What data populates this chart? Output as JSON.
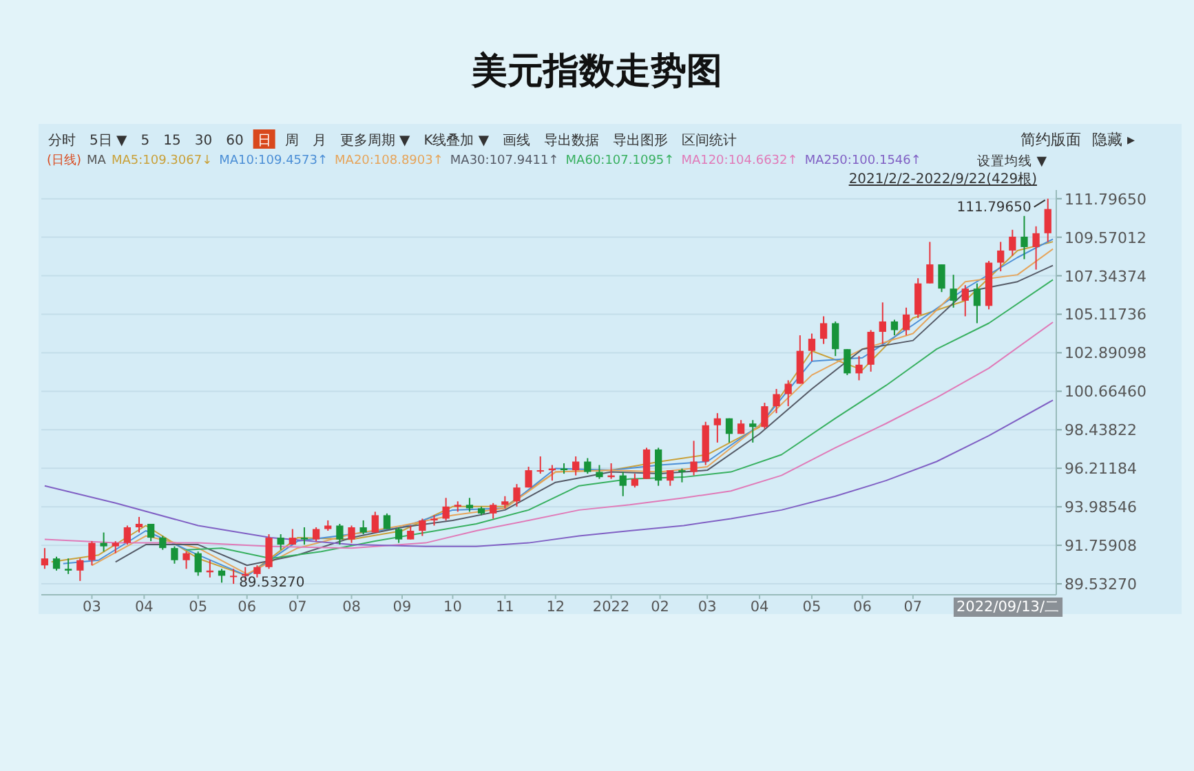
{
  "chart_data": {
    "type": "candlestick",
    "title": "美元指数走势图",
    "x": [
      "2021-02-01",
      "2021-02-08",
      "2021-02-15",
      "2021-02-22",
      "2021-03-01",
      "2021-03-08",
      "2021-03-15",
      "2021-03-22",
      "2021-03-29",
      "2021-04-05",
      "2021-04-12",
      "2021-04-19",
      "2021-04-26",
      "2021-05-03",
      "2021-05-10",
      "2021-05-17",
      "2021-05-24",
      "2021-05-31",
      "2021-06-07",
      "2021-06-14",
      "2021-06-21",
      "2021-06-28",
      "2021-07-05",
      "2021-07-12",
      "2021-07-19",
      "2021-07-26",
      "2021-08-02",
      "2021-08-09",
      "2021-08-16",
      "2021-08-23",
      "2021-08-30",
      "2021-09-06",
      "2021-09-13",
      "2021-09-20",
      "2021-09-27",
      "2021-10-04",
      "2021-10-11",
      "2021-10-18",
      "2021-10-25",
      "2021-11-01",
      "2021-11-08",
      "2021-11-15",
      "2021-11-22",
      "2021-11-29",
      "2021-12-06",
      "2021-12-13",
      "2021-12-20",
      "2021-12-27",
      "2022-01-03",
      "2022-01-10",
      "2022-01-17",
      "2022-01-24",
      "2022-01-31",
      "2022-02-07",
      "2022-02-14",
      "2022-02-21",
      "2022-02-28",
      "2022-03-07",
      "2022-03-14",
      "2022-03-21",
      "2022-03-28",
      "2022-04-04",
      "2022-04-11",
      "2022-04-18",
      "2022-04-25",
      "2022-05-02",
      "2022-05-09",
      "2022-05-16",
      "2022-05-23",
      "2022-05-30",
      "2022-06-06",
      "2022-06-13",
      "2022-06-20",
      "2022-06-27",
      "2022-07-04",
      "2022-07-11",
      "2022-07-18",
      "2022-07-25",
      "2022-08-01",
      "2022-08-08",
      "2022-08-15",
      "2022-08-22",
      "2022-08-29",
      "2022-09-05",
      "2022-09-12",
      "2022-09-19"
    ],
    "ohlc": [
      [
        90.6,
        91.6,
        90.4,
        91.0
      ],
      [
        91.0,
        91.1,
        90.3,
        90.4
      ],
      [
        90.4,
        91.0,
        90.1,
        90.3
      ],
      [
        90.3,
        91.0,
        89.7,
        90.9
      ],
      [
        90.9,
        92.0,
        90.6,
        91.9
      ],
      [
        91.9,
        92.5,
        91.4,
        91.7
      ],
      [
        91.7,
        92.0,
        91.3,
        91.9
      ],
      [
        91.9,
        92.9,
        91.8,
        92.8
      ],
      [
        92.8,
        93.4,
        92.5,
        93.0
      ],
      [
        93.0,
        93.0,
        92.0,
        92.2
      ],
      [
        92.2,
        92.3,
        91.5,
        91.6
      ],
      [
        91.6,
        91.7,
        90.7,
        90.9
      ],
      [
        90.9,
        91.4,
        90.4,
        91.3
      ],
      [
        91.3,
        91.4,
        90.0,
        90.2
      ],
      [
        90.2,
        90.9,
        89.9,
        90.3
      ],
      [
        90.3,
        90.4,
        89.6,
        90.0
      ],
      [
        90.0,
        90.4,
        89.5327,
        90.0
      ],
      [
        90.0,
        90.5,
        89.7,
        90.1
      ],
      [
        90.1,
        90.6,
        89.9,
        90.5
      ],
      [
        90.5,
        92.4,
        90.4,
        92.2
      ],
      [
        92.2,
        92.4,
        91.5,
        91.8
      ],
      [
        91.8,
        92.7,
        91.8,
        92.2
      ],
      [
        92.2,
        92.8,
        91.8,
        92.1
      ],
      [
        92.1,
        92.8,
        92.0,
        92.7
      ],
      [
        92.7,
        93.2,
        92.6,
        92.9
      ],
      [
        92.9,
        93.0,
        91.8,
        92.1
      ],
      [
        92.1,
        92.9,
        91.9,
        92.8
      ],
      [
        92.8,
        93.2,
        92.4,
        92.5
      ],
      [
        92.5,
        93.7,
        92.5,
        93.5
      ],
      [
        93.5,
        93.6,
        92.7,
        92.7
      ],
      [
        92.7,
        92.8,
        91.9,
        92.1
      ],
      [
        92.1,
        92.9,
        92.1,
        92.6
      ],
      [
        92.6,
        93.3,
        92.3,
        93.2
      ],
      [
        93.2,
        93.5,
        92.9,
        93.3
      ],
      [
        93.3,
        94.5,
        93.2,
        94.0
      ],
      [
        94.0,
        94.3,
        93.7,
        94.1
      ],
      [
        94.1,
        94.5,
        93.7,
        93.9
      ],
      [
        93.9,
        94.0,
        93.5,
        93.6
      ],
      [
        93.6,
        94.2,
        93.3,
        94.1
      ],
      [
        94.1,
        94.6,
        93.9,
        94.3
      ],
      [
        94.3,
        95.3,
        94.0,
        95.1
      ],
      [
        95.1,
        96.3,
        95.1,
        96.1
      ],
      [
        96.1,
        96.9,
        95.9,
        96.1
      ],
      [
        96.1,
        96.4,
        95.5,
        96.2
      ],
      [
        96.2,
        96.5,
        95.9,
        96.1
      ],
      [
        96.1,
        96.9,
        95.8,
        96.6
      ],
      [
        96.6,
        96.8,
        95.9,
        96.0
      ],
      [
        96.0,
        96.4,
        95.6,
        95.7
      ],
      [
        95.7,
        96.5,
        95.6,
        95.8
      ],
      [
        95.8,
        96.0,
        94.6,
        95.2
      ],
      [
        95.2,
        95.9,
        95.1,
        95.6
      ],
      [
        95.6,
        97.4,
        95.6,
        97.3
      ],
      [
        97.3,
        97.4,
        95.2,
        95.5
      ],
      [
        95.5,
        96.1,
        95.2,
        96.1
      ],
      [
        96.1,
        96.2,
        95.4,
        96.0
      ],
      [
        96.0,
        97.8,
        95.8,
        96.6
      ],
      [
        96.6,
        98.9,
        96.4,
        98.7
      ],
      [
        98.7,
        99.4,
        97.7,
        99.1
      ],
      [
        99.1,
        99.1,
        97.7,
        98.2
      ],
      [
        98.2,
        99.0,
        98.2,
        98.8
      ],
      [
        98.8,
        99.0,
        97.7,
        98.6
      ],
      [
        98.6,
        100.0,
        98.5,
        99.8
      ],
      [
        99.8,
        100.8,
        99.4,
        100.5
      ],
      [
        100.5,
        101.3,
        99.8,
        101.1
      ],
      [
        101.1,
        103.9,
        101.1,
        103.0
      ],
      [
        103.0,
        104.0,
        102.4,
        103.7
      ],
      [
        103.7,
        105.0,
        103.4,
        104.6
      ],
      [
        104.6,
        104.7,
        102.7,
        103.1
      ],
      [
        103.1,
        103.1,
        101.6,
        101.7
      ],
      [
        101.7,
        102.7,
        101.3,
        102.2
      ],
      [
        102.2,
        104.2,
        101.8,
        104.1
      ],
      [
        104.1,
        105.8,
        103.4,
        104.7
      ],
      [
        104.7,
        104.8,
        103.9,
        104.2
      ],
      [
        104.2,
        105.5,
        103.9,
        105.1
      ],
      [
        105.1,
        107.2,
        104.9,
        106.9
      ],
      [
        106.9,
        109.3,
        106.9,
        108.0
      ],
      [
        108.0,
        108.0,
        106.4,
        106.6
      ],
      [
        106.6,
        107.4,
        105.5,
        105.9
      ],
      [
        105.9,
        106.8,
        105.0,
        106.6
      ],
      [
        106.6,
        106.9,
        104.6,
        105.6
      ],
      [
        105.6,
        108.2,
        105.4,
        108.1
      ],
      [
        108.1,
        109.3,
        107.6,
        108.8
      ],
      [
        108.8,
        110.0,
        108.5,
        109.6
      ],
      [
        109.6,
        110.8,
        108.3,
        109.0
      ],
      [
        109.0,
        110.2,
        107.7,
        109.8
      ],
      [
        109.8,
        111.7965,
        109.3,
        111.2
      ]
    ],
    "series": [
      {
        "name": "MA5:109.3067↓",
        "color": "#c9a13a",
        "type": "line",
        "x": [
          "2021-02-05",
          "2021-03-05",
          "2021-04-02",
          "2021-05-03",
          "2021-06-01",
          "2021-07-01",
          "2021-08-02",
          "2021-09-01",
          "2021-10-01",
          "2021-11-01",
          "2021-12-01",
          "2022-01-03",
          "2022-02-01",
          "2022-03-01",
          "2022-04-01",
          "2022-05-02",
          "2022-06-01",
          "2022-07-01",
          "2022-08-01",
          "2022-09-01",
          "2022-09-22"
        ],
        "values": [
          90.8,
          91.2,
          92.9,
          91.0,
          90.0,
          92.2,
          92.1,
          92.6,
          94.0,
          94.0,
          96.0,
          96.1,
          96.6,
          97.0,
          98.6,
          103.0,
          101.9,
          104.9,
          105.9,
          108.8,
          109.31
        ]
      },
      {
        "name": "MA10:109.4573↑",
        "color": "#4c8fd6",
        "type": "line",
        "x": [
          "2021-02-12",
          "2021-03-05",
          "2021-04-02",
          "2021-05-03",
          "2021-06-01",
          "2021-07-01",
          "2021-08-02",
          "2021-09-01",
          "2021-10-01",
          "2021-11-01",
          "2021-12-01",
          "2022-01-03",
          "2022-02-01",
          "2022-03-01",
          "2022-04-01",
          "2022-05-02",
          "2022-06-01",
          "2022-07-01",
          "2022-08-01",
          "2022-09-01",
          "2022-09-22"
        ],
        "values": [
          90.7,
          90.9,
          92.6,
          91.2,
          90.0,
          92.0,
          92.4,
          92.8,
          93.8,
          93.9,
          96.2,
          96.1,
          96.4,
          96.6,
          98.7,
          102.4,
          102.6,
          104.5,
          106.6,
          108.4,
          109.46
        ]
      },
      {
        "name": "MA20:108.8903↑",
        "color": "#e6a45a",
        "type": "line",
        "x": [
          "2021-03-01",
          "2021-04-02",
          "2021-05-03",
          "2021-06-01",
          "2021-07-01",
          "2021-08-02",
          "2021-09-01",
          "2021-10-01",
          "2021-11-01",
          "2021-12-01",
          "2022-01-03",
          "2022-02-01",
          "2022-03-01",
          "2022-04-01",
          "2022-05-02",
          "2022-06-01",
          "2022-07-01",
          "2022-08-01",
          "2022-09-01",
          "2022-09-22"
        ],
        "values": [
          90.6,
          92.3,
          91.6,
          90.1,
          91.6,
          92.4,
          92.9,
          93.5,
          93.9,
          96.0,
          96.1,
          96.0,
          96.3,
          98.7,
          101.6,
          103.1,
          104.0,
          107.0,
          107.4,
          108.89
        ]
      },
      {
        "name": "MA30:107.9411↑",
        "color": "#555a66",
        "type": "line",
        "x": [
          "2021-03-15",
          "2021-04-02",
          "2021-05-03",
          "2021-06-01",
          "2021-07-01",
          "2021-08-02",
          "2021-09-01",
          "2021-10-01",
          "2021-11-01",
          "2021-12-01",
          "2022-01-03",
          "2022-02-01",
          "2022-03-01",
          "2022-04-01",
          "2022-05-02",
          "2022-06-01",
          "2022-07-01",
          "2022-08-01",
          "2022-09-01",
          "2022-09-22"
        ],
        "values": [
          90.8,
          91.8,
          91.8,
          90.6,
          91.2,
          92.2,
          92.8,
          93.2,
          93.8,
          95.4,
          96.0,
          95.9,
          96.1,
          98.2,
          100.8,
          103.1,
          103.6,
          106.4,
          107.0,
          107.94
        ]
      },
      {
        "name": "MA60:107.1095↑",
        "color": "#38b060",
        "type": "line",
        "x": [
          "2021-04-26",
          "2021-05-17",
          "2021-06-15",
          "2021-07-15",
          "2021-08-16",
          "2021-09-15",
          "2021-10-15",
          "2021-11-15",
          "2021-12-15",
          "2022-01-14",
          "2022-02-15",
          "2022-03-15",
          "2022-04-14",
          "2022-05-16",
          "2022-06-15",
          "2022-07-15",
          "2022-08-15",
          "2022-09-22"
        ],
        "values": [
          91.5,
          91.6,
          91.0,
          91.4,
          92.0,
          92.5,
          93.0,
          93.8,
          95.2,
          95.6,
          95.7,
          96.0,
          97.0,
          99.1,
          101.0,
          103.1,
          104.6,
          107.11
        ]
      },
      {
        "name": "MA120:104.6632↑",
        "color": "#e07ab8",
        "type": "line",
        "x": [
          "2021-02-01",
          "2021-03-15",
          "2021-05-03",
          "2021-06-15",
          "2021-08-02",
          "2021-09-15",
          "2021-10-15",
          "2021-11-15",
          "2021-12-15",
          "2022-01-14",
          "2022-02-15",
          "2022-03-15",
          "2022-04-14",
          "2022-05-16",
          "2022-06-15",
          "2022-07-15",
          "2022-08-15",
          "2022-09-22"
        ],
        "values": [
          92.1,
          91.9,
          91.9,
          91.7,
          91.6,
          91.9,
          92.6,
          93.2,
          93.8,
          94.1,
          94.5,
          94.9,
          95.8,
          97.4,
          98.8,
          100.3,
          102.0,
          104.66
        ]
      },
      {
        "name": "MA250:100.1546↑",
        "color": "#8060c4",
        "type": "line",
        "x": [
          "2021-02-01",
          "2021-03-15",
          "2021-05-03",
          "2021-06-15",
          "2021-08-02",
          "2021-09-15",
          "2021-10-15",
          "2021-11-15",
          "2021-12-15",
          "2022-01-14",
          "2022-02-15",
          "2022-03-15",
          "2022-04-14",
          "2022-05-16",
          "2022-06-15",
          "2022-07-15",
          "2022-08-15",
          "2022-09-22"
        ],
        "values": [
          95.2,
          94.2,
          92.9,
          92.2,
          91.8,
          91.7,
          91.7,
          91.9,
          92.3,
          92.6,
          92.9,
          93.3,
          93.8,
          94.6,
          95.5,
          96.6,
          98.1,
          100.15
        ]
      }
    ],
    "xlim": [
      "2021-01-30",
      "2022-09-24"
    ],
    "xticks": [
      {
        "value": "2021-03-01",
        "label": "03"
      },
      {
        "value": "2021-04-01",
        "label": "04"
      },
      {
        "value": "2021-05-03",
        "label": "05"
      },
      {
        "value": "2021-06-01",
        "label": "06"
      },
      {
        "value": "2021-07-01",
        "label": "07"
      },
      {
        "value": "2021-08-02",
        "label": "08"
      },
      {
        "value": "2021-09-01",
        "label": "09"
      },
      {
        "value": "2021-10-01",
        "label": "10"
      },
      {
        "value": "2021-11-01",
        "label": "11"
      },
      {
        "value": "2021-12-01",
        "label": "12"
      },
      {
        "value": "2022-01-03",
        "label": "2022"
      },
      {
        "value": "2022-02-01",
        "label": "02"
      },
      {
        "value": "2022-03-01",
        "label": "03"
      },
      {
        "value": "2022-04-01",
        "label": "04"
      },
      {
        "value": "2022-05-02",
        "label": "05"
      },
      {
        "value": "2022-06-01",
        "label": "06"
      },
      {
        "value": "2022-07-01",
        "label": "07"
      }
    ],
    "ylim": [
      88.9,
      112.3
    ],
    "yticks": [
      {
        "value": 89.5327,
        "label": "89.53270"
      },
      91.75908,
      93.98546,
      96.21184,
      98.43822,
      {
        "value": 100.6646,
        "label": "100.66460"
      },
      102.89098,
      105.11736,
      107.34374,
      109.57012,
      {
        "value": 111.7965,
        "label": "111.79650"
      }
    ],
    "grid": "y",
    "annotations": [
      "分时",
      "5日 ▼",
      "5",
      "15",
      "30",
      "60",
      "日",
      "周",
      "月",
      "更多周期 ▼",
      "K线叠加 ▼",
      "画线",
      "导出数据",
      "导出图形",
      "区间统计",
      "简约版面",
      "隐藏 ▸",
      "(日线)",
      "MA",
      "设置均线 ▼",
      "2021/2/2-2022/9/22(429根)",
      "2022/09/13/二",
      {
        "text": "111.79650",
        "x": "2022-09-19",
        "y": 111.7965
      },
      {
        "text": "89.53270",
        "x": "2021-05-24",
        "y": 89.5327
      }
    ]
  }
}
